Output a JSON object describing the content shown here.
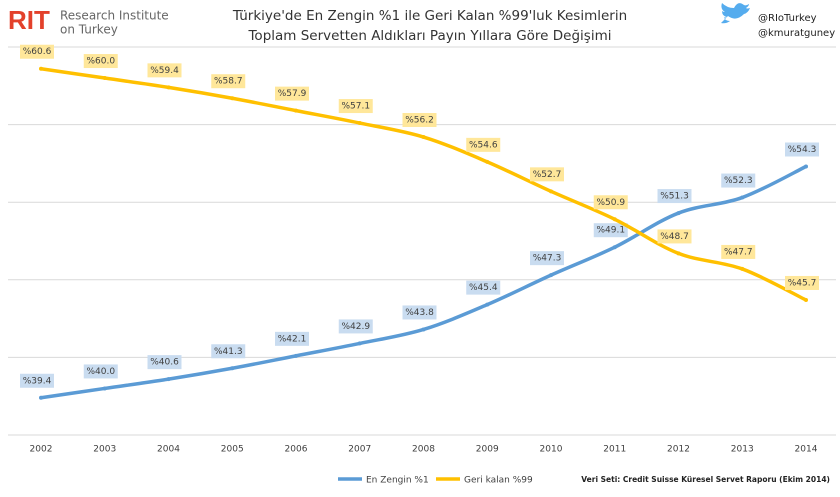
{
  "header": {
    "logo": "RIT",
    "logo_text": [
      "Research Institute",
      "on Turkey"
    ],
    "handles": [
      "@RIoTurkey",
      "@kmuratguney"
    ]
  },
  "source": "Veri Seti: Credit Suisse Küresel Servet Raporu (Ekim 2014)",
  "chart_data": {
    "type": "line",
    "title": [
      "Türkiye'de En Zengin %1 ile Geri Kalan %99'luk Kesimlerin",
      "Toplam Servetten Aldıkları Payın Yıllara Göre Değişimi"
    ],
    "categories": [
      "2002",
      "2003",
      "2004",
      "2005",
      "2006",
      "2007",
      "2008",
      "2009",
      "2010",
      "2011",
      "2012",
      "2013",
      "2014"
    ],
    "series": [
      {
        "name": "En Zengin %1",
        "color": "#5b9bd5",
        "label_fill": "#c9dcf0",
        "values": [
          39.4,
          40.0,
          40.6,
          41.3,
          42.1,
          42.9,
          43.8,
          45.4,
          47.3,
          49.1,
          51.3,
          52.3,
          54.3
        ],
        "value_labels": [
          "%39.4",
          "%40.0",
          "%40.6",
          "%41.3",
          "%42.1",
          "%42.9",
          "%43.8",
          "%45.4",
          "%47.3",
          "%49.1",
          "%51.3",
          "%52.3",
          "%54.3"
        ]
      },
      {
        "name": "Geri kalan %99",
        "color": "#ffc000",
        "label_fill": "#ffe79a",
        "values": [
          60.6,
          60.0,
          59.4,
          58.7,
          57.9,
          57.1,
          56.2,
          54.6,
          52.7,
          50.9,
          48.7,
          47.7,
          45.7
        ],
        "value_labels": [
          "%60.6",
          "%60.0",
          "%59.4",
          "%58.7",
          "%57.9",
          "%57.1",
          "%56.2",
          "%54.6",
          "%52.7",
          "%50.9",
          "%48.7",
          "%47.7",
          "%45.7"
        ]
      }
    ],
    "ylim": [
      37,
      62
    ],
    "yticks": [
      37,
      42,
      47,
      52,
      57,
      62
    ],
    "grid": true
  }
}
